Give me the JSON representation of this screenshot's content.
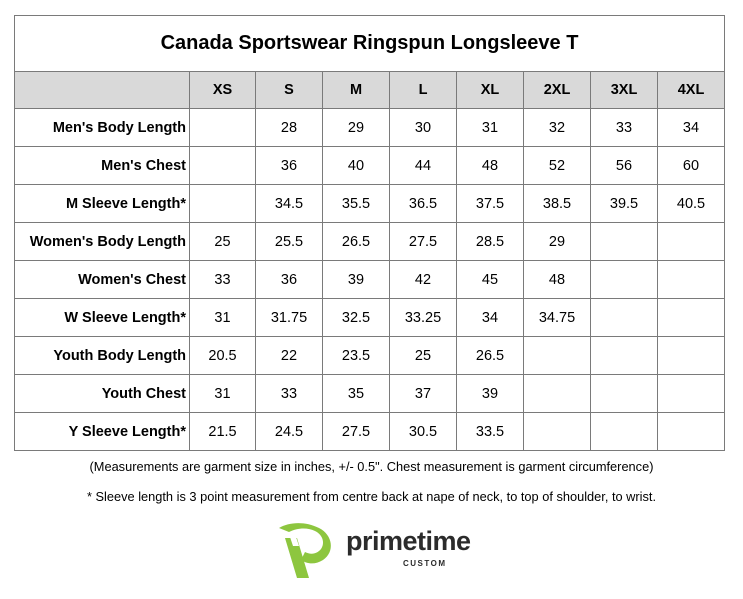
{
  "title": "Canada Sportswear Ringspun Longsleeve T",
  "sizes": [
    "XS",
    "S",
    "M",
    "L",
    "XL",
    "2XL",
    "3XL",
    "4XL"
  ],
  "rows": [
    {
      "label": "Men's Body Length",
      "values": [
        "",
        "28",
        "29",
        "30",
        "31",
        "32",
        "33",
        "34"
      ]
    },
    {
      "label": "Men's Chest",
      "values": [
        "",
        "36",
        "40",
        "44",
        "48",
        "52",
        "56",
        "60"
      ]
    },
    {
      "label": "M Sleeve Length*",
      "values": [
        "",
        "34.5",
        "35.5",
        "36.5",
        "37.5",
        "38.5",
        "39.5",
        "40.5"
      ]
    },
    {
      "label": "Women's Body Length",
      "values": [
        "25",
        "25.5",
        "26.5",
        "27.5",
        "28.5",
        "29",
        "",
        ""
      ]
    },
    {
      "label": "Women's Chest",
      "values": [
        "33",
        "36",
        "39",
        "42",
        "45",
        "48",
        "",
        ""
      ]
    },
    {
      "label": "W Sleeve Length*",
      "values": [
        "31",
        "31.75",
        "32.5",
        "33.25",
        "34",
        "34.75",
        "",
        ""
      ]
    },
    {
      "label": "Youth Body Length",
      "values": [
        "20.5",
        "22",
        "23.5",
        "25",
        "26.5",
        "",
        "",
        ""
      ]
    },
    {
      "label": "Youth Chest",
      "values": [
        "31",
        "33",
        "35",
        "37",
        "39",
        "",
        "",
        ""
      ]
    },
    {
      "label": "Y Sleeve Length*",
      "values": [
        "21.5",
        "24.5",
        "27.5",
        "30.5",
        "33.5",
        "",
        "",
        ""
      ]
    }
  ],
  "notes": {
    "measurement": "(Measurements are garment size in inches, +/- 0.5\". Chest measurement is garment circumference)",
    "sleeve": "* Sleeve length is 3 point measurement from centre back at nape of neck, to top of shoulder, to wrist."
  },
  "logo": {
    "name": "primetime",
    "sub": "CUSTOM",
    "icon": "primetime-p-logo-icon",
    "colors": {
      "green": "#8dc63f",
      "dark": "#2b2b2b"
    }
  }
}
